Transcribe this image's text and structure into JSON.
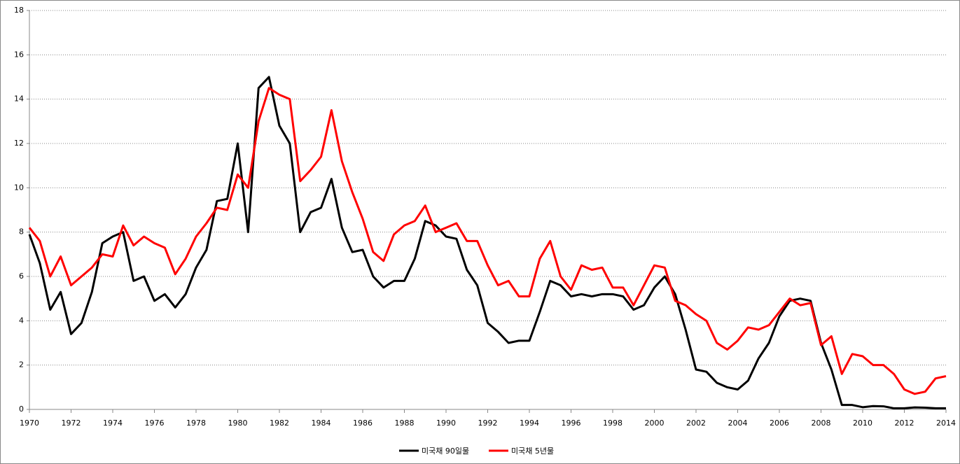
{
  "chart_data": {
    "type": "line",
    "x": [
      1970,
      1970.5,
      1971,
      1971.5,
      1972,
      1972.5,
      1973,
      1973.5,
      1974,
      1974.5,
      1975,
      1975.5,
      1976,
      1976.5,
      1977,
      1977.5,
      1978,
      1978.5,
      1979,
      1979.5,
      1980,
      1980.5,
      1981,
      1981.5,
      1982,
      1982.5,
      1983,
      1983.5,
      1984,
      1984.5,
      1985,
      1985.5,
      1986,
      1986.5,
      1987,
      1987.5,
      1988,
      1988.5,
      1989,
      1989.5,
      1990,
      1990.5,
      1991,
      1991.5,
      1992,
      1992.5,
      1993,
      1993.5,
      1994,
      1994.5,
      1995,
      1995.5,
      1996,
      1996.5,
      1997,
      1997.5,
      1998,
      1998.5,
      1999,
      1999.5,
      2000,
      2000.5,
      2001,
      2001.5,
      2002,
      2002.5,
      2003,
      2003.5,
      2004,
      2004.5,
      2005,
      2005.5,
      2006,
      2006.5,
      2007,
      2007.5,
      2008,
      2008.5,
      2009,
      2009.5,
      2010,
      2010.5,
      2011,
      2011.5,
      2012,
      2012.5,
      2013,
      2013.5,
      2014
    ],
    "series": [
      {
        "name": "미국채 90일물",
        "color": "#000000",
        "values": [
          7.9,
          6.6,
          4.5,
          5.3,
          3.4,
          3.9,
          5.3,
          7.5,
          7.8,
          8.0,
          5.8,
          6.0,
          4.9,
          5.2,
          4.6,
          5.2,
          6.4,
          7.2,
          9.4,
          9.5,
          12.0,
          8.0,
          14.5,
          15.0,
          12.8,
          12.0,
          8.0,
          8.9,
          9.1,
          10.4,
          8.2,
          7.1,
          7.2,
          6.0,
          5.5,
          5.8,
          5.8,
          6.8,
          8.5,
          8.3,
          7.8,
          7.7,
          6.3,
          5.6,
          3.9,
          3.5,
          3.0,
          3.1,
          3.1,
          4.4,
          5.8,
          5.6,
          5.1,
          5.2,
          5.1,
          5.2,
          5.2,
          5.1,
          4.5,
          4.7,
          5.5,
          6.0,
          5.2,
          3.6,
          1.8,
          1.7,
          1.2,
          1.0,
          0.9,
          1.3,
          2.3,
          3.0,
          4.2,
          4.9,
          5.0,
          4.9,
          3.0,
          1.8,
          0.2,
          0.2,
          0.1,
          0.15,
          0.14,
          0.05,
          0.05,
          0.09,
          0.08,
          0.05,
          0.05
        ]
      },
      {
        "name": "미국채 5년물",
        "color": "#ff0000",
        "values": [
          8.2,
          7.6,
          6.0,
          6.9,
          5.6,
          6.0,
          6.4,
          7.0,
          6.9,
          8.3,
          7.4,
          7.8,
          7.5,
          7.3,
          6.1,
          6.8,
          7.8,
          8.4,
          9.1,
          9.0,
          10.6,
          10.0,
          13.0,
          14.5,
          14.2,
          14.0,
          10.3,
          10.8,
          11.4,
          13.5,
          11.2,
          9.8,
          8.6,
          7.1,
          6.7,
          7.9,
          8.3,
          8.5,
          9.2,
          8.0,
          8.2,
          8.4,
          7.6,
          7.6,
          6.5,
          5.6,
          5.8,
          5.1,
          5.1,
          6.8,
          7.6,
          6.0,
          5.4,
          6.5,
          6.3,
          6.4,
          5.5,
          5.5,
          4.7,
          5.6,
          6.5,
          6.4,
          4.9,
          4.7,
          4.3,
          4.0,
          3.0,
          2.7,
          3.1,
          3.7,
          3.6,
          3.8,
          4.4,
          5.0,
          4.7,
          4.8,
          2.9,
          3.3,
          1.6,
          2.5,
          2.4,
          2.0,
          2.0,
          1.6,
          0.9,
          0.7,
          0.8,
          1.4,
          1.5
        ]
      }
    ],
    "xlim": [
      1970,
      2014
    ],
    "xticks": [
      1970,
      1972,
      1974,
      1976,
      1978,
      1980,
      1982,
      1984,
      1986,
      1988,
      1990,
      1992,
      1994,
      1996,
      1998,
      2000,
      2002,
      2004,
      2006,
      2008,
      2010,
      2012,
      2014
    ],
    "ylim": [
      0,
      18
    ],
    "yticks": [
      0,
      2,
      4,
      6,
      8,
      10,
      12,
      14,
      16,
      18
    ],
    "grid": true,
    "legend": "bottom"
  }
}
